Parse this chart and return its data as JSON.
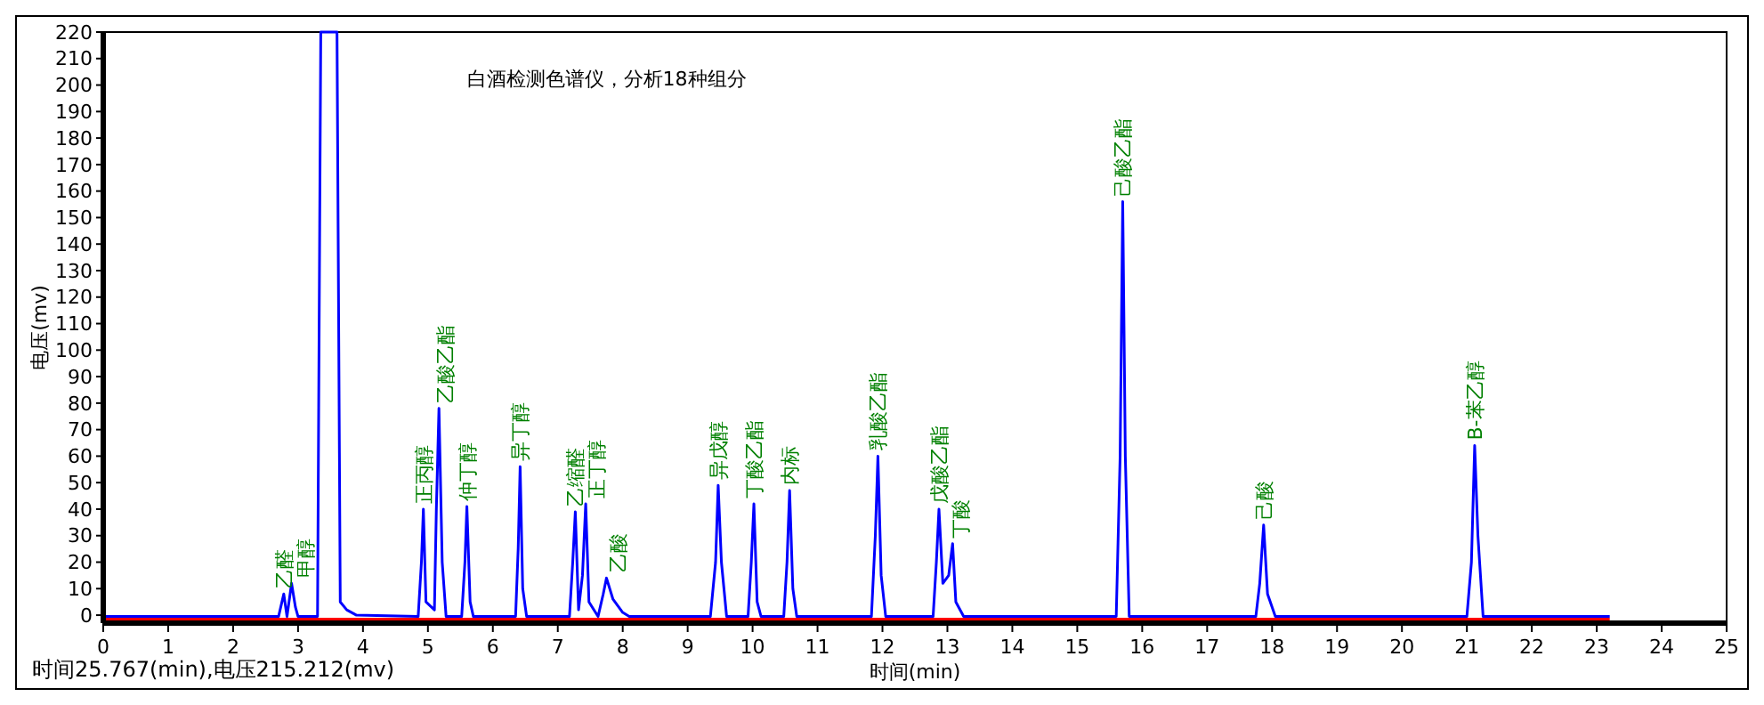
{
  "chart_data": {
    "type": "line",
    "title": "白酒检测色谱仪，分析18种组分",
    "xlabel": "时间(min)",
    "ylabel": "电压(mv)",
    "xlim": [
      0,
      25
    ],
    "xticks": [
      0,
      1,
      2,
      3,
      4,
      5,
      6,
      7,
      8,
      9,
      10,
      11,
      12,
      13,
      14,
      15,
      16,
      17,
      18,
      19,
      20,
      21,
      22,
      23,
      24,
      25
    ],
    "ylim": [
      -3,
      220
    ],
    "yticks": [
      0,
      10,
      20,
      30,
      40,
      50,
      60,
      70,
      80,
      90,
      100,
      110,
      120,
      130,
      140,
      150,
      160,
      170,
      180,
      190,
      200,
      210,
      220
    ],
    "grid": false,
    "marker": "none",
    "line_style": "solid",
    "series": [
      {
        "color": "#ff0000",
        "x": [
          0,
          23.2
        ],
        "values": [
          -1.5,
          -1.5
        ]
      },
      {
        "color": "#0000ff",
        "x": [
          0,
          2.7,
          2.78,
          2.83,
          2.9,
          2.96,
          3.0,
          3.3,
          3.35,
          3.6,
          3.65,
          3.75,
          3.9,
          4.85,
          4.9,
          4.93,
          4.97,
          5.1,
          5.13,
          5.17,
          5.22,
          5.28,
          5.52,
          5.57,
          5.6,
          5.65,
          5.7,
          6.35,
          6.39,
          6.42,
          6.46,
          6.52,
          7.18,
          7.23,
          7.27,
          7.32,
          7.38,
          7.43,
          7.48,
          7.62,
          7.7,
          7.75,
          7.85,
          8.0,
          8.1,
          9.35,
          9.43,
          9.47,
          9.52,
          9.6,
          9.93,
          9.98,
          10.02,
          10.07,
          10.13,
          10.48,
          10.53,
          10.57,
          10.62,
          10.68,
          11.83,
          11.89,
          11.93,
          11.98,
          12.05,
          12.78,
          12.83,
          12.87,
          12.93,
          13.02,
          13.08,
          13.13,
          13.25,
          15.6,
          15.66,
          15.7,
          15.74,
          15.8,
          17.75,
          17.81,
          17.87,
          17.93,
          18.05,
          21.0,
          21.07,
          21.12,
          21.17,
          21.25,
          23.2
        ],
        "values": [
          -0.5,
          -0.5,
          8,
          -0.5,
          12,
          3,
          -0.5,
          -0.5,
          220,
          220,
          5,
          2,
          0,
          -0.5,
          20,
          40,
          5,
          2,
          40,
          78,
          20,
          -0.5,
          -0.5,
          20,
          41,
          5,
          -0.5,
          -0.5,
          25,
          56,
          10,
          -0.5,
          -0.5,
          20,
          39,
          2,
          15,
          42,
          5,
          -0.5,
          8,
          14,
          6,
          1,
          -0.5,
          -0.5,
          20,
          49,
          20,
          -0.5,
          -0.5,
          20,
          42,
          5,
          -0.5,
          -0.5,
          20,
          47,
          10,
          -0.5,
          -0.5,
          30,
          60,
          15,
          -0.5,
          -0.5,
          20,
          40,
          12,
          15,
          27,
          5,
          -0.5,
          -0.5,
          60,
          156,
          60,
          -0.5,
          -0.5,
          12,
          34,
          8,
          -0.5,
          -0.5,
          20,
          64,
          30,
          -0.5,
          -0.5
        ]
      }
    ],
    "annotations": [
      {
        "text": "乙醛",
        "x": 2.78,
        "y": 8
      },
      {
        "text": "甲醇",
        "x": 2.9,
        "y": 12
      },
      {
        "text": "正丙醇",
        "x": 4.93,
        "y": 40
      },
      {
        "text": "乙酸乙酯",
        "x": 5.17,
        "y": 78
      },
      {
        "text": "仲丁醇",
        "x": 5.6,
        "y": 41
      },
      {
        "text": "异丁醇",
        "x": 6.42,
        "y": 56
      },
      {
        "text": "乙缩醛",
        "x": 7.27,
        "y": 39
      },
      {
        "text": "正丁醇",
        "x": 7.43,
        "y": 42
      },
      {
        "text": "乙酸",
        "x": 7.75,
        "y": 14
      },
      {
        "text": "异戊醇",
        "x": 9.47,
        "y": 49
      },
      {
        "text": "丁酸乙酯",
        "x": 10.02,
        "y": 42
      },
      {
        "text": "内标",
        "x": 10.57,
        "y": 47
      },
      {
        "text": "乳酸乙酯",
        "x": 11.93,
        "y": 60
      },
      {
        "text": "戊酸乙酯",
        "x": 12.87,
        "y": 40
      },
      {
        "text": "丁酸",
        "x": 13.08,
        "y": 27
      },
      {
        "text": "己酸乙酯",
        "x": 15.7,
        "y": 156
      },
      {
        "text": "己酸",
        "x": 17.87,
        "y": 34
      },
      {
        "text": "B-苯乙醇",
        "x": 21.12,
        "y": 64
      },
      "时间25.767(min),电压215.212(mv)"
    ]
  }
}
